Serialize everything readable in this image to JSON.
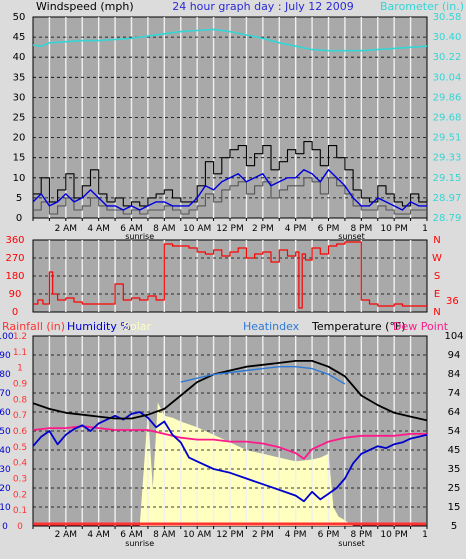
{
  "header": {
    "left": "Windspeed (mph)",
    "center": "24 hour graph day : July 12 2009",
    "right": "Barometer (in.)"
  },
  "colors": {
    "background": "#dcdcdc",
    "plot_bg": "#a9a9a9",
    "grid": "#000000",
    "hour_grid": "#f0f0f0",
    "cyan": "#33d6d6",
    "wind": "#000000",
    "gust": "#0000dd",
    "wind_gray": "#555555",
    "direction": "#ff0000",
    "rain": "#ff3333",
    "humidity": "#0000cc",
    "solar": "#ffffc0",
    "temperature": "#000000",
    "dewpoint": "#ff1a8c",
    "heatindex": "#2e7ad6"
  },
  "chart_data": [
    {
      "type": "line",
      "title": "24 hour graph day : July 12 2009",
      "ylabel": "Windspeed (mph)",
      "ylabel_right": "Barometer (in.)",
      "ylim": [
        0,
        50
      ],
      "yticks_left": [
        "0",
        "5",
        "10",
        "15",
        "20",
        "25",
        "30",
        "35",
        "40",
        "45",
        "50"
      ],
      "yticks_right": [
        "28.79",
        "28.97",
        "29.15",
        "29.33",
        "29.51",
        "29.68",
        "29.86",
        "30.04",
        "30.22",
        "30.40",
        "30.58"
      ],
      "x_labels": [
        "2 AM",
        "4 AM",
        "6 AM",
        "8 AM",
        "10 AM",
        "12 PM",
        "2 PM",
        "4 PM",
        "6 PM",
        "8 PM",
        "10 PM"
      ],
      "x_sublabels": [
        "sunrise",
        "sunset"
      ],
      "series": [
        {
          "name": "barometer",
          "color": "cyan",
          "x": [
            0,
            0.5,
            1,
            2,
            3,
            4,
            5,
            6,
            7,
            8,
            9,
            10,
            11,
            12,
            13,
            14,
            15,
            16,
            17,
            18,
            19,
            20,
            21,
            22,
            23,
            24
          ],
          "values": [
            30.33,
            30.32,
            30.35,
            30.36,
            30.37,
            30.37,
            30.38,
            30.39,
            30.41,
            30.43,
            30.45,
            30.46,
            30.47,
            30.45,
            30.42,
            30.39,
            30.35,
            30.32,
            30.29,
            30.28,
            30.28,
            30.28,
            30.29,
            30.3,
            30.31,
            30.32
          ]
        },
        {
          "name": "wind gust",
          "color": "wind",
          "x": [
            0,
            0.5,
            1,
            1.5,
            2,
            2.5,
            3,
            3.5,
            4,
            4.5,
            5,
            5.5,
            6,
            6.5,
            7,
            7.5,
            8,
            8.5,
            9,
            9.5,
            10,
            10.5,
            11,
            11.5,
            12,
            12.5,
            13,
            13.5,
            14,
            14.5,
            15,
            15.5,
            16,
            16.5,
            17,
            17.5,
            18,
            18.5,
            19,
            19.5,
            20,
            20.5,
            21,
            21.5,
            22,
            22.5,
            23,
            23.5,
            24
          ],
          "values": [
            6,
            10,
            4,
            7,
            11,
            5,
            8,
            12,
            6,
            4,
            5,
            3,
            4,
            3,
            5,
            6,
            7,
            5,
            4,
            4,
            8,
            14,
            11,
            15,
            17,
            18,
            13,
            16,
            18,
            12,
            14,
            17,
            16,
            19,
            17,
            13,
            18,
            15,
            12,
            7,
            5,
            4,
            8,
            6,
            4,
            3,
            6,
            4,
            5
          ]
        },
        {
          "name": "wind average",
          "color": "gust",
          "x": [
            0,
            0.5,
            1,
            1.5,
            2,
            2.5,
            3,
            3.5,
            4,
            4.5,
            5,
            5.5,
            6,
            6.5,
            7,
            7.5,
            8,
            8.5,
            9,
            9.5,
            10,
            10.5,
            11,
            11.5,
            12,
            12.5,
            13,
            13.5,
            14,
            14.5,
            15,
            15.5,
            16,
            16.5,
            17,
            17.5,
            18,
            18.5,
            19,
            19.5,
            20,
            20.5,
            21,
            21.5,
            22,
            22.5,
            23,
            23.5,
            24
          ],
          "values": [
            4,
            6,
            3,
            4,
            6,
            4,
            5,
            7,
            5,
            3,
            3,
            2,
            3,
            2,
            3,
            4,
            4,
            3,
            3,
            3,
            5,
            8,
            7,
            9,
            10,
            11,
            9,
            10,
            11,
            8,
            9,
            10,
            10,
            12,
            11,
            9,
            12,
            10,
            8,
            5,
            3,
            3,
            5,
            4,
            3,
            2,
            4,
            3,
            3
          ]
        },
        {
          "name": "wind",
          "color": "wind_gray",
          "x": [
            0,
            0.5,
            1,
            1.5,
            2,
            2.5,
            3,
            3.5,
            4,
            4.5,
            5,
            5.5,
            6,
            6.5,
            7,
            7.5,
            8,
            8.5,
            9,
            9.5,
            10,
            10.5,
            11,
            11.5,
            12,
            12.5,
            13,
            13.5,
            14,
            14.5,
            15,
            15.5,
            16,
            16.5,
            17,
            17.5,
            18,
            18.5,
            19,
            19.5,
            20,
            20.5,
            21,
            21.5,
            22,
            22.5,
            23,
            23.5,
            24
          ],
          "values": [
            2,
            4,
            1,
            3,
            5,
            2,
            3,
            5,
            3,
            2,
            2,
            1,
            2,
            1,
            2,
            2,
            3,
            2,
            1,
            2,
            3,
            6,
            4,
            7,
            8,
            9,
            6,
            8,
            9,
            5,
            7,
            8,
            8,
            10,
            9,
            6,
            10,
            8,
            6,
            3,
            2,
            2,
            3,
            2,
            1,
            1,
            2,
            2,
            2
          ]
        }
      ]
    },
    {
      "type": "line",
      "ylim": [
        0,
        360
      ],
      "yticks_left": [
        "0",
        "90",
        "180",
        "270",
        "360"
      ],
      "yticks_right": [
        "N",
        "E",
        "S",
        "W",
        "N"
      ],
      "annotation": "36",
      "series": [
        {
          "name": "wind direction",
          "color": "direction",
          "x": [
            0,
            0.3,
            0.6,
            1,
            1.2,
            1.5,
            2,
            2.5,
            3,
            3.5,
            4,
            4.5,
            5,
            5.5,
            6,
            6.5,
            7,
            7.5,
            8,
            8.5,
            9,
            9.5,
            10,
            10.5,
            11,
            11.5,
            12,
            12.5,
            13,
            13.5,
            14,
            14.5,
            15,
            15.5,
            16,
            16.2,
            16.4,
            16.6,
            17,
            17.5,
            18,
            18.5,
            19,
            19.5,
            19.8,
            20,
            20.5,
            21,
            21.5,
            22,
            22.5,
            23,
            23.5,
            24
          ],
          "values": [
            40,
            60,
            40,
            200,
            90,
            60,
            70,
            50,
            40,
            40,
            40,
            40,
            140,
            60,
            70,
            60,
            80,
            60,
            340,
            330,
            330,
            320,
            300,
            290,
            310,
            280,
            300,
            320,
            270,
            290,
            300,
            250,
            310,
            280,
            300,
            20,
            290,
            260,
            320,
            290,
            330,
            340,
            350,
            350,
            350,
            60,
            40,
            30,
            30,
            40,
            30,
            30,
            30,
            30
          ]
        }
      ]
    },
    {
      "type": "line",
      "legend": [
        "Rainfall (in)",
        "Humidity %",
        "Solar",
        "Heatindex",
        "Temperature (°F)",
        "Dew Point"
      ],
      "yticks_rain": [
        "0",
        "0.1",
        "0.2",
        "0.3",
        "0.4",
        "0.5",
        "0.6",
        "0.7",
        "0.8",
        "0.9",
        "1",
        "1.1",
        "1.2"
      ],
      "yticks_humidity": [
        "0",
        "10",
        "20",
        "30",
        "40",
        "50",
        "60",
        "70",
        "80",
        "90",
        "100"
      ],
      "yticks_temperature": [
        "5",
        "15",
        "25",
        "35",
        "45",
        "54",
        "64",
        "74",
        "84",
        "94",
        "104"
      ],
      "temperature_range": [
        5,
        104
      ],
      "series": [
        {
          "name": "Solar",
          "color": "solar",
          "x": [
            6.5,
            7,
            7.3,
            7.6,
            8,
            8.5,
            9,
            10,
            11,
            12,
            13,
            14,
            15,
            16,
            17,
            17.5,
            18,
            18.3,
            18.6,
            19,
            19.5
          ],
          "values": [
            0,
            60,
            20,
            65,
            58,
            57,
            55,
            52,
            48,
            44,
            40,
            38,
            36,
            34,
            35,
            36,
            38,
            10,
            5,
            3,
            0
          ]
        },
        {
          "name": "Humidity %",
          "color": "humidity",
          "x": [
            0,
            0.5,
            1,
            1.5,
            2,
            2.5,
            3,
            3.5,
            4,
            4.5,
            5,
            5.5,
            6,
            6.5,
            7,
            7.5,
            8,
            8.5,
            9,
            9.5,
            10,
            11,
            12,
            13,
            14,
            15,
            16,
            16.5,
            17,
            17.5,
            18,
            18.5,
            19,
            19.5,
            20,
            20.5,
            21,
            21.5,
            22,
            22.5,
            23,
            23.5,
            24
          ],
          "values": [
            42,
            47,
            50,
            43,
            48,
            51,
            53,
            50,
            54,
            56,
            58,
            56,
            59,
            60,
            57,
            52,
            55,
            48,
            44,
            36,
            34,
            30,
            28,
            25,
            22,
            19,
            16,
            13,
            18,
            14,
            17,
            20,
            25,
            33,
            38,
            40,
            42,
            41,
            43,
            44,
            46,
            47,
            48
          ]
        },
        {
          "name": "Dew Point",
          "color": "dewpoint",
          "x": [
            0,
            1,
            2,
            3,
            4,
            5,
            6,
            7,
            8,
            9,
            10,
            11,
            12,
            13,
            14,
            15,
            16,
            16.5,
            17,
            17.5,
            18,
            19,
            20,
            21,
            22,
            23,
            24
          ],
          "values": [
            55,
            56,
            56,
            57,
            56,
            55,
            55,
            55,
            53,
            51,
            50,
            50,
            49,
            49,
            48,
            46,
            43,
            40,
            45,
            47,
            49,
            51,
            52,
            52,
            52,
            53,
            53
          ]
        },
        {
          "name": "Temperature (°F)",
          "color": "temperature",
          "x": [
            0,
            1,
            2,
            3,
            4,
            5,
            6,
            7,
            8,
            9,
            10,
            11,
            12,
            13,
            14,
            15,
            16,
            17,
            18,
            19,
            20,
            21,
            22,
            23,
            24
          ],
          "values": [
            69,
            66,
            64,
            63,
            62,
            61,
            61,
            63,
            66,
            73,
            80,
            84,
            86,
            88,
            89,
            90,
            91,
            91,
            88,
            83,
            73,
            68,
            64,
            62,
            60
          ]
        },
        {
          "name": "Heatindex",
          "color": "heatindex",
          "x": [
            9,
            10,
            11,
            12,
            13,
            14,
            15,
            16,
            17,
            18,
            19
          ],
          "values": [
            80,
            82,
            84,
            85,
            86,
            87,
            88,
            88,
            87,
            84,
            79
          ]
        }
      ]
    }
  ]
}
